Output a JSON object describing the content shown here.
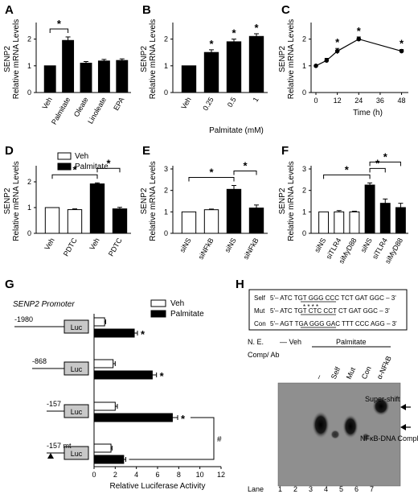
{
  "panel_letters": [
    "A",
    "B",
    "C",
    "D",
    "E",
    "F",
    "G",
    "H"
  ],
  "chart_data": [
    {
      "panel": "A",
      "type": "bar",
      "ylabel": "SENP2 Relative mRNA Levels",
      "xlabel": "",
      "ylim": [
        0,
        2.5
      ],
      "yticks": [
        "0",
        "1",
        "2"
      ],
      "categories": [
        "Veh",
        "Palmitate",
        "Oleate",
        "Linoleate",
        "EPA"
      ],
      "values": [
        1.0,
        1.95,
        1.1,
        1.18,
        1.2
      ],
      "errors": [
        0,
        0.13,
        0.06,
        0.06,
        0.06
      ],
      "annotations": [
        {
          "from": 0,
          "to": 1,
          "text": "*"
        }
      ]
    },
    {
      "panel": "B",
      "type": "bar",
      "ylabel": "SENP2 Relative mRNA Levels",
      "xlabel": "Palmitate (mM)",
      "ylim": [
        0,
        2.5
      ],
      "yticks": [
        "0",
        "1",
        "2"
      ],
      "categories": [
        "Veh",
        "0.25",
        "0.5",
        "1"
      ],
      "values": [
        1.0,
        1.5,
        1.9,
        2.1
      ],
      "errors": [
        0,
        0.1,
        0.1,
        0.1
      ],
      "stars": [
        "",
        "*",
        "*",
        "*"
      ]
    },
    {
      "panel": "C",
      "type": "line",
      "ylabel": "SENP2 Relative mRNA Levels",
      "xlabel": "Time (h)",
      "ylim": [
        0,
        2.5
      ],
      "yticks": [
        "0",
        "1",
        "2"
      ],
      "x": [
        0,
        6,
        12,
        24,
        48
      ],
      "xlim": [
        0,
        50
      ],
      "xticks": [
        "0",
        "12",
        "24",
        "36",
        "48"
      ],
      "values": [
        1.0,
        1.2,
        1.55,
        2.0,
        1.55
      ],
      "errors": [
        0,
        0.08,
        0.1,
        0.08,
        0.06
      ],
      "stars": [
        "",
        "",
        "*",
        "*",
        "*"
      ]
    },
    {
      "panel": "D",
      "type": "bar",
      "ylabel": "SENP2 Relative mRNA Levels",
      "xlabel": "",
      "ylim": [
        0,
        2.5
      ],
      "yticks": [
        "0",
        "1",
        "2"
      ],
      "categories": [
        "Veh",
        "PDTC",
        "Veh",
        "PDTC"
      ],
      "values": [
        1.0,
        0.92,
        1.92,
        0.95
      ],
      "errors": [
        0,
        0.03,
        0.04,
        0.06
      ],
      "fills": [
        "white",
        "white",
        "black",
        "black"
      ],
      "legend": [
        "Veh",
        "Palmitate"
      ],
      "annotations": [
        {
          "from": 0,
          "to": 2,
          "text": "*"
        },
        {
          "from": 2,
          "to": 3,
          "text": "*"
        }
      ]
    },
    {
      "panel": "E",
      "type": "bar",
      "ylabel": "SENP2 Relative mRNA Levels",
      "xlabel": "",
      "ylim": [
        0,
        3
      ],
      "yticks": [
        "0",
        "1",
        "2",
        "3"
      ],
      "categories": [
        "siNS",
        "siNFkB",
        "siNS",
        "siNFkB"
      ],
      "values": [
        1.0,
        1.1,
        2.05,
        1.18
      ],
      "errors": [
        0,
        0.03,
        0.18,
        0.14
      ],
      "fills": [
        "white",
        "white",
        "black",
        "black"
      ],
      "annotations": [
        {
          "from": 0,
          "to": 2,
          "text": "*"
        },
        {
          "from": 2,
          "to": 3,
          "text": "*"
        }
      ]
    },
    {
      "panel": "F",
      "type": "bar",
      "ylabel": "SENP2 Relative mRNA Levels",
      "xlabel": "",
      "ylim": [
        0,
        3
      ],
      "yticks": [
        "0",
        "1",
        "2",
        "3"
      ],
      "categories": [
        "siNS",
        "siTLR4",
        "siMyD88",
        "siNS",
        "siTLR4",
        "siMyD88"
      ],
      "values": [
        1.0,
        1.0,
        1.0,
        2.25,
        1.4,
        1.2
      ],
      "errors": [
        0,
        0.06,
        0.03,
        0.1,
        0.2,
        0.2
      ],
      "fills": [
        "white",
        "white",
        "white",
        "black",
        "black",
        "black"
      ],
      "annotations": [
        {
          "from": 0,
          "to": 3,
          "text": "*"
        },
        {
          "from": 3,
          "to": 4,
          "text": "*"
        },
        {
          "from": 3,
          "to": 5,
          "text": "*"
        }
      ]
    },
    {
      "panel": "G",
      "type": "bar",
      "orientation": "horizontal",
      "title": "SENP2 Promoter",
      "xlabel": "Relative Luciferase Activity",
      "xlim": [
        0,
        12
      ],
      "xticks": [
        "0",
        "2",
        "4",
        "6",
        "8",
        "10",
        "12"
      ],
      "legend": [
        "Veh",
        "Palmitate"
      ],
      "constructs": [
        {
          "label": "-1980",
          "box": "Luc",
          "veh": 1.0,
          "veh_err": 0.1,
          "palm": 3.8,
          "palm_err": 0.3,
          "star": "*"
        },
        {
          "label": "-868",
          "box": "Luc",
          "veh": 1.8,
          "veh_err": 0.2,
          "palm": 5.5,
          "palm_err": 0.4,
          "star": "*"
        },
        {
          "label": "-157",
          "box": "Luc",
          "veh": 2.0,
          "veh_err": 0.2,
          "palm": 7.4,
          "palm_err": 0.5,
          "star": "*"
        },
        {
          "label": "-157 mt",
          "box": "Luc",
          "veh": 1.6,
          "veh_err": 0.1,
          "palm": 2.8,
          "palm_err": 0.2,
          "star": ""
        }
      ],
      "hash": "#"
    }
  ],
  "panel_h": {
    "sequences": [
      {
        "name": "Self",
        "text": "5'– ATC TGT GGG CCC TCT GAT GGC – 3'"
      },
      {
        "name": "Mut",
        "text": "5'– ATC TGT CTC CCT CT GAT GGC – 3'"
      },
      {
        "name": "Con",
        "text": "5'– AGT TGA GGG GAC TTT CCC AGG – 3'"
      }
    ],
    "ne_label": "N. E.",
    "veh_label": "— Veh",
    "palm_label": "Palmitate",
    "comp_label": "Comp/ Ab",
    "comp_items": [
      "–",
      "Self",
      "Mut",
      "Con",
      "α-NFkB"
    ],
    "arrow_labels": [
      "Super-shift",
      "NFκB-DNA Complex"
    ],
    "lane_label": "Lane",
    "lanes": [
      "1",
      "2",
      "3",
      "4",
      "5",
      "6",
      "7"
    ]
  }
}
